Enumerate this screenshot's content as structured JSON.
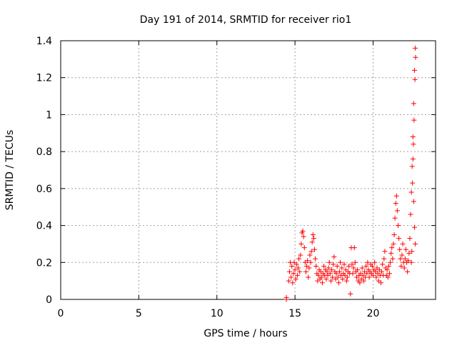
{
  "chart_data": {
    "type": "scatter",
    "title": "Day 191 of 2014, SRMTID for receiver rio1",
    "xlabel": "GPS time / hours",
    "ylabel": "SRMTID / TECUs",
    "xlim": [
      0,
      24
    ],
    "ylim": [
      0,
      1.4
    ],
    "xticks": [
      0,
      5,
      10,
      15,
      20
    ],
    "xtick_labels": [
      "0",
      "5",
      "10",
      "15",
      "20"
    ],
    "yticks": [
      0,
      0.2,
      0.4,
      0.6,
      0.8,
      1.0,
      1.2,
      1.4
    ],
    "ytick_labels": [
      "0",
      "0.2",
      "0.4",
      "0.6",
      "0.8",
      "1",
      "1.2",
      "1.4"
    ],
    "grid": true,
    "marker": "+",
    "color": "#ff0000",
    "series": [
      {
        "name": "rio1",
        "points": [
          [
            14.45,
            0.0
          ],
          [
            14.45,
            0.01
          ],
          [
            14.6,
            0.1
          ],
          [
            14.65,
            0.15
          ],
          [
            14.7,
            0.2
          ],
          [
            14.75,
            0.12
          ],
          [
            14.8,
            0.18
          ],
          [
            14.85,
            0.09
          ],
          [
            14.9,
            0.14
          ],
          [
            14.95,
            0.2
          ],
          [
            15.0,
            0.16
          ],
          [
            15.05,
            0.11
          ],
          [
            15.1,
            0.19
          ],
          [
            15.15,
            0.13
          ],
          [
            15.2,
            0.17
          ],
          [
            15.25,
            0.22
          ],
          [
            15.3,
            0.15
          ],
          [
            15.35,
            0.24
          ],
          [
            15.4,
            0.3
          ],
          [
            15.45,
            0.36
          ],
          [
            15.5,
            0.37
          ],
          [
            15.55,
            0.34
          ],
          [
            15.6,
            0.28
          ],
          [
            15.65,
            0.2
          ],
          [
            15.7,
            0.15
          ],
          [
            15.75,
            0.18
          ],
          [
            15.8,
            0.21
          ],
          [
            15.85,
            0.12
          ],
          [
            15.9,
            0.17
          ],
          [
            15.95,
            0.24
          ],
          [
            16.0,
            0.2
          ],
          [
            16.05,
            0.26
          ],
          [
            16.1,
            0.31
          ],
          [
            16.15,
            0.35
          ],
          [
            16.2,
            0.33
          ],
          [
            16.25,
            0.27
          ],
          [
            16.3,
            0.22
          ],
          [
            16.35,
            0.18
          ],
          [
            16.4,
            0.14
          ],
          [
            16.45,
            0.1
          ],
          [
            16.5,
            0.13
          ],
          [
            16.55,
            0.16
          ],
          [
            16.6,
            0.11
          ],
          [
            16.65,
            0.15
          ],
          [
            16.7,
            0.12
          ],
          [
            16.75,
            0.09
          ],
          [
            16.8,
            0.14
          ],
          [
            16.85,
            0.18
          ],
          [
            16.9,
            0.13
          ],
          [
            16.95,
            0.16
          ],
          [
            17.0,
            0.11
          ],
          [
            17.05,
            0.15
          ],
          [
            17.1,
            0.13
          ],
          [
            17.15,
            0.17
          ],
          [
            17.2,
            0.2
          ],
          [
            17.25,
            0.14
          ],
          [
            17.3,
            0.1
          ],
          [
            17.35,
            0.16
          ],
          [
            17.4,
            0.12
          ],
          [
            17.45,
            0.19
          ],
          [
            17.5,
            0.23
          ],
          [
            17.55,
            0.15
          ],
          [
            17.6,
            0.11
          ],
          [
            17.65,
            0.14
          ],
          [
            17.7,
            0.18
          ],
          [
            17.75,
            0.12
          ],
          [
            17.8,
            0.09
          ],
          [
            17.85,
            0.15
          ],
          [
            17.9,
            0.2
          ],
          [
            17.95,
            0.13
          ],
          [
            18.0,
            0.17
          ],
          [
            18.05,
            0.11
          ],
          [
            18.1,
            0.14
          ],
          [
            18.15,
            0.19
          ],
          [
            18.2,
            0.13
          ],
          [
            18.25,
            0.16
          ],
          [
            18.3,
            0.1
          ],
          [
            18.35,
            0.12
          ],
          [
            18.4,
            0.15
          ],
          [
            18.45,
            0.18
          ],
          [
            18.5,
            0.14
          ],
          [
            18.55,
            0.03
          ],
          [
            18.6,
            0.28
          ],
          [
            18.65,
            0.19
          ],
          [
            18.7,
            0.14
          ],
          [
            18.75,
            0.17
          ],
          [
            18.8,
            0.28
          ],
          [
            18.85,
            0.2
          ],
          [
            18.9,
            0.15
          ],
          [
            18.95,
            0.12
          ],
          [
            19.0,
            0.16
          ],
          [
            19.05,
            0.1
          ],
          [
            19.1,
            0.13
          ],
          [
            19.15,
            0.09
          ],
          [
            19.2,
            0.14
          ],
          [
            19.25,
            0.11
          ],
          [
            19.3,
            0.17
          ],
          [
            19.35,
            0.13
          ],
          [
            19.4,
            0.1
          ],
          [
            19.45,
            0.15
          ],
          [
            19.5,
            0.12
          ],
          [
            19.55,
            0.18
          ],
          [
            19.6,
            0.14
          ],
          [
            19.65,
            0.2
          ],
          [
            19.7,
            0.16
          ],
          [
            19.75,
            0.12
          ],
          [
            19.8,
            0.15
          ],
          [
            19.85,
            0.19
          ],
          [
            19.9,
            0.14
          ],
          [
            19.95,
            0.18
          ],
          [
            20.0,
            0.13
          ],
          [
            20.05,
            0.16
          ],
          [
            20.1,
            0.2
          ],
          [
            20.15,
            0.15
          ],
          [
            20.2,
            0.12
          ],
          [
            20.25,
            0.17
          ],
          [
            20.3,
            0.14
          ],
          [
            20.35,
            0.1
          ],
          [
            20.4,
            0.16
          ],
          [
            20.45,
            0.13
          ],
          [
            20.5,
            0.09
          ],
          [
            20.55,
            0.15
          ],
          [
            20.6,
            0.19
          ],
          [
            20.65,
            0.13
          ],
          [
            20.7,
            0.22
          ],
          [
            20.75,
            0.26
          ],
          [
            20.8,
            0.17
          ],
          [
            20.85,
            0.13
          ],
          [
            20.9,
            0.16
          ],
          [
            20.95,
            0.12
          ],
          [
            21.0,
            0.18
          ],
          [
            21.05,
            0.14
          ],
          [
            21.1,
            0.2
          ],
          [
            21.15,
            0.25
          ],
          [
            21.2,
            0.28
          ],
          [
            21.25,
            0.22
          ],
          [
            21.3,
            0.3
          ],
          [
            21.35,
            0.35
          ],
          [
            21.4,
            0.44
          ],
          [
            21.45,
            0.52
          ],
          [
            21.5,
            0.56
          ],
          [
            21.55,
            0.48
          ],
          [
            21.6,
            0.4
          ],
          [
            21.65,
            0.33
          ],
          [
            21.7,
            0.27
          ],
          [
            21.75,
            0.22
          ],
          [
            21.8,
            0.18
          ],
          [
            21.85,
            0.24
          ],
          [
            21.9,
            0.3
          ],
          [
            21.95,
            0.2
          ],
          [
            22.0,
            0.17
          ],
          [
            22.05,
            0.22
          ],
          [
            22.1,
            0.27
          ],
          [
            22.15,
            0.2
          ],
          [
            22.2,
            0.15
          ],
          [
            22.25,
            0.21
          ],
          [
            22.3,
            0.25
          ],
          [
            22.35,
            0.33
          ],
          [
            22.4,
            0.46
          ],
          [
            22.45,
            0.58
          ],
          [
            22.5,
            0.72
          ],
          [
            22.55,
            0.88
          ],
          [
            22.6,
            1.06
          ],
          [
            22.65,
            1.24
          ],
          [
            22.7,
            1.36
          ],
          [
            22.72,
            1.31
          ],
          [
            22.68,
            1.19
          ],
          [
            22.62,
            0.97
          ],
          [
            22.58,
            0.84
          ],
          [
            22.55,
            0.76
          ],
          [
            22.52,
            0.63
          ],
          [
            22.6,
            0.53
          ],
          [
            22.65,
            0.39
          ],
          [
            22.7,
            0.3
          ],
          [
            22.48,
            0.26
          ],
          [
            22.45,
            0.2
          ]
        ]
      }
    ]
  }
}
